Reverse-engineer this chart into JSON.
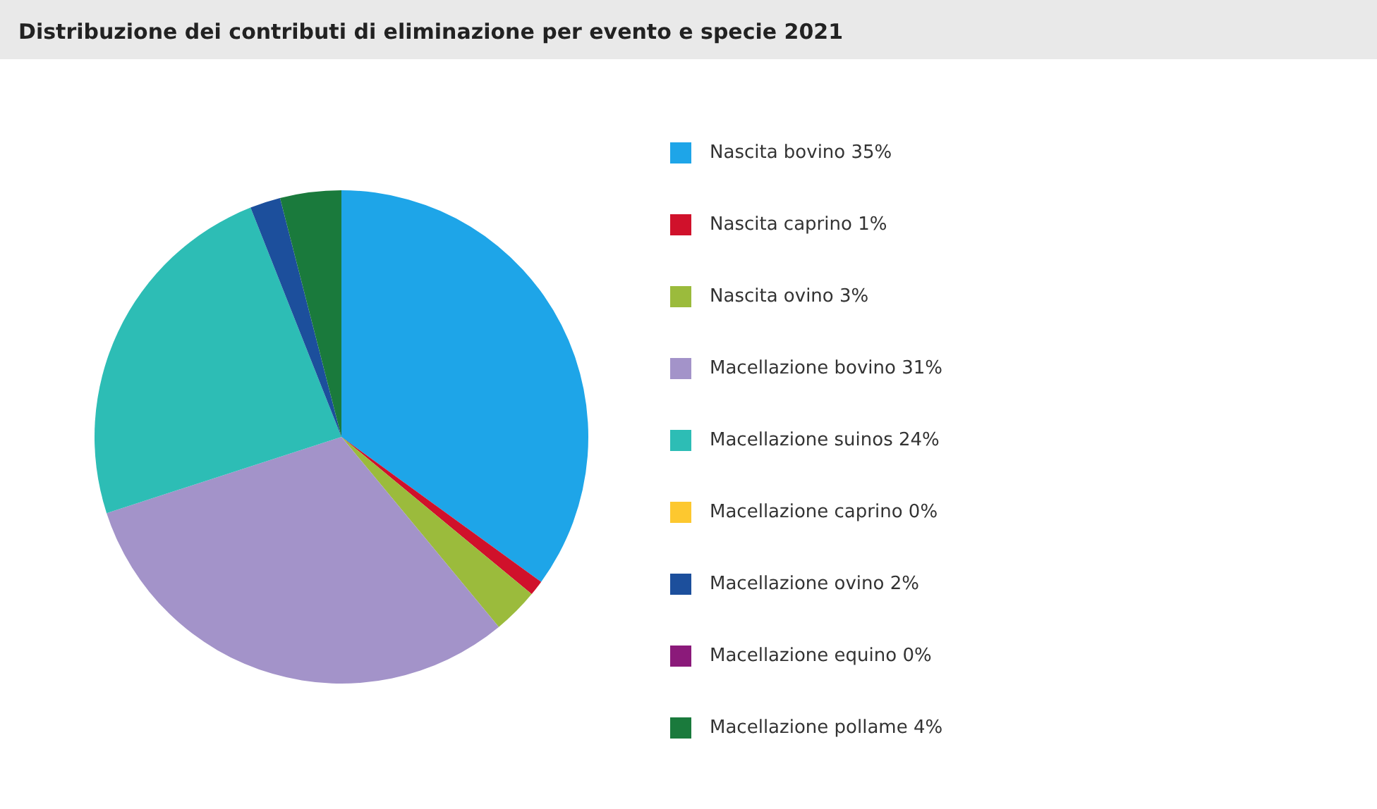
{
  "chart_data": {
    "type": "pie",
    "title": "Distribuzione dei contributi di eliminazione per evento e specie 2021",
    "categories": [
      "Nascita bovino 35%",
      "Nascita caprino 1%",
      "Nascita ovino 3%",
      "Macellazione bovino 31%",
      "Macellazione suinos 24%",
      "Macellazione caprino 0%",
      "Macellazione ovino 2%",
      "Macellazione equino 0%",
      "Macellazione pollame 4%"
    ],
    "values": [
      35,
      1,
      3,
      31,
      24,
      0,
      2,
      0,
      4
    ],
    "colors": [
      "#1ea5e8",
      "#d0112b",
      "#9bbb3c",
      "#a393c9",
      "#2dbdb5",
      "#fdc82f",
      "#1c4f9c",
      "#8b1a7a",
      "#1a7a3c"
    ],
    "legend": "right"
  }
}
